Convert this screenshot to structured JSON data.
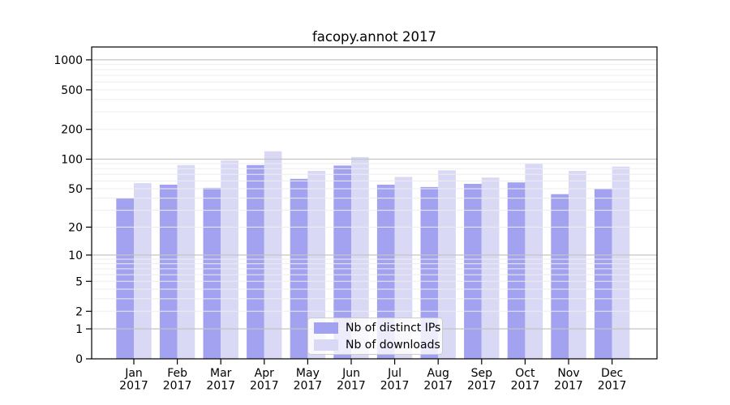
{
  "chart_data": {
    "type": "bar",
    "title": "facopy.annot 2017",
    "categories": [
      "Jan",
      "Feb",
      "Mar",
      "Apr",
      "May",
      "Jun",
      "Jul",
      "Aug",
      "Sep",
      "Oct",
      "Nov",
      "Dec"
    ],
    "category_year": "2017",
    "series": [
      {
        "name": "Nb of distinct IPs",
        "color": "#a2a2f0",
        "values": [
          40,
          55,
          51,
          87,
          63,
          86,
          55,
          52,
          56,
          58,
          44,
          50
        ]
      },
      {
        "name": "Nb of downloads",
        "color": "#d9d9f6",
        "values": [
          57,
          87,
          97,
          120,
          76,
          105,
          66,
          77,
          65,
          91,
          76,
          84
        ]
      }
    ],
    "yscale": "log1p",
    "ylim": [
      0,
      1350
    ],
    "yticks": [
      0,
      1,
      2,
      5,
      10,
      20,
      50,
      100,
      200,
      500,
      1000
    ],
    "xlabel": "",
    "ylabel": "",
    "grid": "horizontal",
    "legend_position": "lower-center",
    "colors": {
      "major_gridline": "#c4c4c4",
      "minor_gridline": "#ededed",
      "axis": "#000000",
      "background": "#ffffff"
    }
  }
}
